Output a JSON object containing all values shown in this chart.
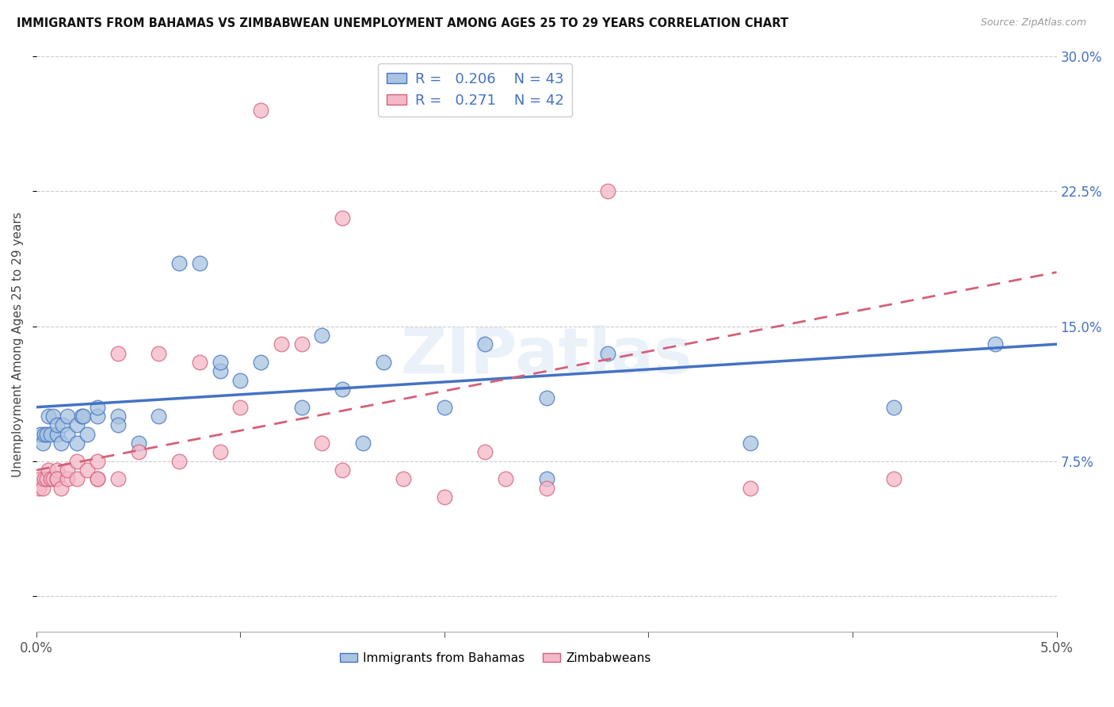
{
  "title": "IMMIGRANTS FROM BAHAMAS VS ZIMBABWEAN UNEMPLOYMENT AMONG AGES 25 TO 29 YEARS CORRELATION CHART",
  "source": "Source: ZipAtlas.com",
  "ylabel": "Unemployment Among Ages 25 to 29 years",
  "r_blue": 0.206,
  "n_blue": 43,
  "r_pink": 0.271,
  "n_pink": 42,
  "x_min": 0.0,
  "x_max": 0.05,
  "y_min": -0.02,
  "y_max": 0.3,
  "right_yticks": [
    0.075,
    0.15,
    0.225,
    0.3
  ],
  "right_yticklabels": [
    "7.5%",
    "15.0%",
    "22.5%",
    "30.0%"
  ],
  "watermark": "ZIPatlas",
  "color_blue": "#a8c4e0",
  "color_blue_line": "#4472c4",
  "color_pink": "#f4b8c8",
  "color_pink_line": "#d4607a",
  "blue_x": [
    0.0002,
    0.0003,
    0.0004,
    0.0005,
    0.0006,
    0.0007,
    0.0008,
    0.001,
    0.001,
    0.0012,
    0.0013,
    0.0015,
    0.0015,
    0.002,
    0.002,
    0.0022,
    0.0023,
    0.0025,
    0.003,
    0.003,
    0.004,
    0.004,
    0.005,
    0.006,
    0.007,
    0.008,
    0.009,
    0.009,
    0.01,
    0.011,
    0.013,
    0.014,
    0.015,
    0.016,
    0.017,
    0.02,
    0.022,
    0.025,
    0.025,
    0.028,
    0.035,
    0.042,
    0.047
  ],
  "blue_y": [
    0.09,
    0.085,
    0.09,
    0.09,
    0.1,
    0.09,
    0.1,
    0.09,
    0.095,
    0.085,
    0.095,
    0.09,
    0.1,
    0.095,
    0.085,
    0.1,
    0.1,
    0.09,
    0.1,
    0.105,
    0.1,
    0.095,
    0.085,
    0.1,
    0.185,
    0.185,
    0.125,
    0.13,
    0.12,
    0.13,
    0.105,
    0.145,
    0.115,
    0.085,
    0.13,
    0.105,
    0.14,
    0.11,
    0.065,
    0.135,
    0.085,
    0.105,
    0.14
  ],
  "pink_x": [
    0.0001,
    0.0002,
    0.0003,
    0.0004,
    0.0005,
    0.0006,
    0.0007,
    0.0008,
    0.001,
    0.001,
    0.001,
    0.0012,
    0.0015,
    0.0015,
    0.002,
    0.002,
    0.0025,
    0.003,
    0.003,
    0.003,
    0.004,
    0.004,
    0.005,
    0.006,
    0.007,
    0.008,
    0.009,
    0.01,
    0.011,
    0.012,
    0.013,
    0.014,
    0.015,
    0.018,
    0.02,
    0.022,
    0.023,
    0.025,
    0.028,
    0.035,
    0.042,
    0.015
  ],
  "pink_y": [
    0.06,
    0.065,
    0.06,
    0.065,
    0.065,
    0.07,
    0.065,
    0.065,
    0.065,
    0.07,
    0.065,
    0.06,
    0.065,
    0.07,
    0.065,
    0.075,
    0.07,
    0.065,
    0.065,
    0.075,
    0.065,
    0.135,
    0.08,
    0.135,
    0.075,
    0.13,
    0.08,
    0.105,
    0.27,
    0.14,
    0.14,
    0.085,
    0.07,
    0.065,
    0.055,
    0.08,
    0.065,
    0.06,
    0.225,
    0.06,
    0.065,
    0.21
  ]
}
